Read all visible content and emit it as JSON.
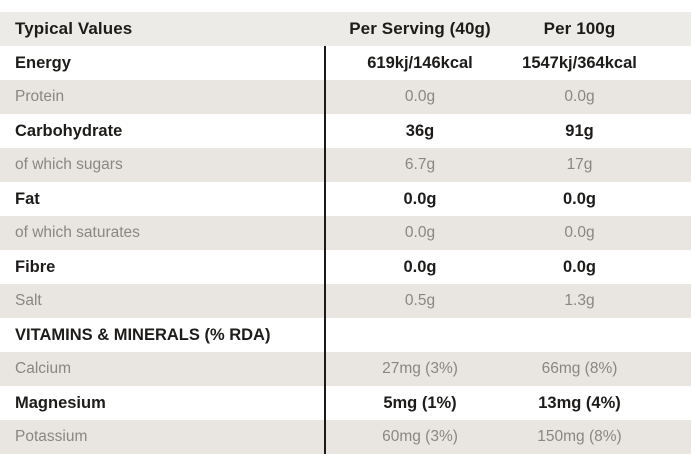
{
  "table": {
    "header": {
      "typical_values": "Typical Values",
      "per_serving": "Per Serving (40g)",
      "per_100g": "Per 100g"
    },
    "rows": [
      {
        "label": "Energy",
        "per_serving": "619kj/146kcal",
        "per_100g": "1547kj/364kcal",
        "emphasis": true,
        "shaded": false
      },
      {
        "label": "Protein",
        "per_serving": "0.0g",
        "per_100g": "0.0g",
        "emphasis": false,
        "shaded": true
      },
      {
        "label": "Carbohydrate",
        "per_serving": "36g",
        "per_100g": "91g",
        "emphasis": true,
        "shaded": false
      },
      {
        "label": "of which sugars",
        "per_serving": "6.7g",
        "per_100g": "17g",
        "emphasis": false,
        "shaded": true
      },
      {
        "label": "Fat",
        "per_serving": "0.0g",
        "per_100g": "0.0g",
        "emphasis": true,
        "shaded": false
      },
      {
        "label": "of which saturates",
        "per_serving": "0.0g",
        "per_100g": "0.0g",
        "emphasis": false,
        "shaded": true
      },
      {
        "label": "Fibre",
        "per_serving": "0.0g",
        "per_100g": "0.0g",
        "emphasis": true,
        "shaded": false
      },
      {
        "label": "Salt",
        "per_serving": "0.5g",
        "per_100g": "1.3g",
        "emphasis": false,
        "shaded": true
      },
      {
        "label": "VITAMINS & MINERALS (% RDA)",
        "per_serving": "",
        "per_100g": "",
        "emphasis": true,
        "shaded": false
      },
      {
        "label": "Calcium",
        "per_serving": "27mg (3%)",
        "per_100g": "66mg (8%)",
        "emphasis": false,
        "shaded": true
      },
      {
        "label": "Magnesium",
        "per_serving": "5mg (1%)",
        "per_100g": "13mg (4%)",
        "emphasis": true,
        "shaded": false
      },
      {
        "label": "Potassium",
        "per_serving": "60mg (3%)",
        "per_100g": "150mg (8%)",
        "emphasis": false,
        "shaded": true
      }
    ]
  },
  "colors": {
    "header_bg": "#edebe8",
    "shaded_row_bg": "#e9e6e2",
    "dark_text": "#1d1c1a",
    "gray_text": "#8a8681",
    "divider_line": "#1a1a1a"
  }
}
